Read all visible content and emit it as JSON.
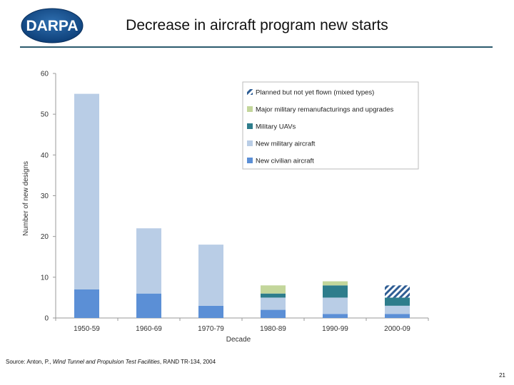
{
  "logo": {
    "text": "DARPA"
  },
  "page_title": "Decrease in aircraft program new starts",
  "source": {
    "prefix": "Source: Anton, P., ",
    "title": "Wind Tunnel and Propulsion Test Facilities",
    "suffix": ", RAND TR-134, 2004"
  },
  "page_number": "21",
  "colors": {
    "new_civilian": "#5b8fd6",
    "new_military": "#b9cde6",
    "uavs": "#2e7d8c",
    "remanufacturing": "#c3d69b",
    "planned": "#2f5d94",
    "axis": "#999999",
    "title_rule": "#2c5a6e"
  },
  "chart_data": {
    "type": "bar",
    "stacked": true,
    "title": "",
    "xlabel": "Decade",
    "ylabel": "Number of new designs",
    "ylim": [
      0,
      60
    ],
    "yticks": [
      0,
      10,
      20,
      30,
      40,
      50,
      60
    ],
    "grid": false,
    "legend_position": "top-right",
    "categories": [
      "1950-59",
      "1960-69",
      "1970-79",
      "1980-89",
      "1990-99",
      "2000-09"
    ],
    "series": [
      {
        "name": "New civilian aircraft",
        "key": "new_civilian",
        "values": [
          7,
          6,
          3,
          2,
          1,
          1
        ]
      },
      {
        "name": "New military aircraft",
        "key": "new_military",
        "values": [
          48,
          16,
          15,
          3,
          4,
          2
        ]
      },
      {
        "name": "Military UAVs",
        "key": "uavs",
        "values": [
          0,
          0,
          0,
          1,
          3,
          2
        ]
      },
      {
        "name": "Major military remanufacturings and upgrades",
        "key": "remanufacturing",
        "values": [
          0,
          0,
          0,
          2,
          1,
          0
        ]
      },
      {
        "name": "Planned but not yet flown (mixed types)",
        "key": "planned",
        "values": [
          0,
          0,
          0,
          0,
          0,
          3
        ]
      }
    ],
    "legend_order": [
      "planned",
      "remanufacturing",
      "uavs",
      "new_military",
      "new_civilian"
    ]
  }
}
